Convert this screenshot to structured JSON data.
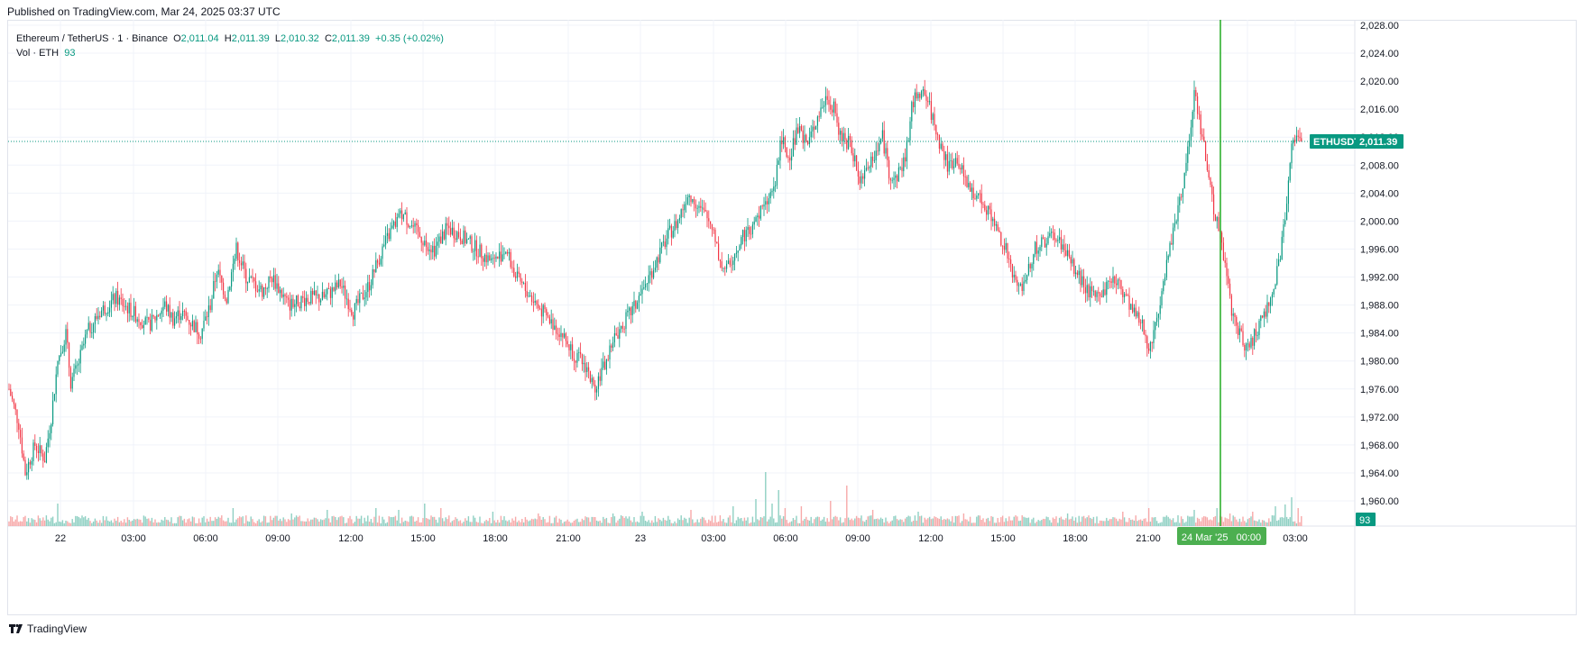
{
  "published": "Published on TradingView.com, Mar 24, 2025 03:37 UTC",
  "footer_brand": "TradingView",
  "legend": {
    "symbol": "Ethereum / TetherUS · 1 · Binance",
    "o_label": "O",
    "o_value": "2,011.04",
    "h_label": "H",
    "h_value": "2,011.39",
    "l_label": "L",
    "l_value": "2,010.32",
    "c_label": "C",
    "c_value": "2,011.39",
    "change": "+0.35 (+0.02%)",
    "vol_label": "Vol · ETH",
    "vol_value": "93"
  },
  "colors": {
    "up": "#089981",
    "down": "#f23645",
    "up_volume": "#8fd0c3",
    "down_volume": "#f7a9a9",
    "grid": "#f0f3fa",
    "crosshair": "#22ab22",
    "time_badge": "#4caf50",
    "price_badge": "#089981"
  },
  "chart_data": {
    "type": "candlestick",
    "symbol": "ETHUSDT",
    "timeframe": "1",
    "last_price": 2011.39,
    "last_price_label": "2,011.39",
    "last_volume": 93,
    "last_volume_label": "93",
    "crosshair_time_label": "24 Mar '25   00:00",
    "ylim": [
      1957,
      2028
    ],
    "y_ticks": [
      {
        "value": 2028,
        "label": "2,028.00"
      },
      {
        "value": 2024,
        "label": "2,024.00"
      },
      {
        "value": 2020,
        "label": "2,020.00"
      },
      {
        "value": 2016,
        "label": "2,016.00"
      },
      {
        "value": 2012,
        "label": "2,012.00"
      },
      {
        "value": 2008,
        "label": "2,008.00"
      },
      {
        "value": 2004,
        "label": "2,004.00"
      },
      {
        "value": 2000,
        "label": "2,000.00"
      },
      {
        "value": 1996,
        "label": "1,996.00"
      },
      {
        "value": 1992,
        "label": "1,992.00"
      },
      {
        "value": 1988,
        "label": "1,988.00"
      },
      {
        "value": 1984,
        "label": "1,984.00"
      },
      {
        "value": 1980,
        "label": "1,980.00"
      },
      {
        "value": 1976,
        "label": "1,976.00"
      },
      {
        "value": 1972,
        "label": "1,972.00"
      },
      {
        "value": 1968,
        "label": "1,968.00"
      },
      {
        "value": 1964,
        "label": "1,964.00"
      },
      {
        "value": 1960,
        "label": "1,960.00"
      }
    ],
    "x_ticks": [
      "22",
      "03:00",
      "06:00",
      "09:00",
      "12:00",
      "15:00",
      "18:00",
      "21:00",
      "23",
      "03:00",
      "06:00",
      "09:00",
      "12:00",
      "15:00",
      "18:00",
      "21:00",
      "00:00",
      "03:00"
    ],
    "price_path": [
      [
        0,
        1976
      ],
      [
        6,
        1971
      ],
      [
        10,
        1964
      ],
      [
        16,
        1968
      ],
      [
        22,
        1966
      ],
      [
        26,
        1972
      ],
      [
        30,
        1980
      ],
      [
        35,
        1984
      ],
      [
        38,
        1977
      ],
      [
        42,
        1979
      ],
      [
        48,
        1984
      ],
      [
        56,
        1987
      ],
      [
        66,
        1989
      ],
      [
        76,
        1987
      ],
      [
        86,
        1985
      ],
      [
        96,
        1988
      ],
      [
        101,
        1986
      ],
      [
        106,
        1987
      ],
      [
        110,
        1986
      ],
      [
        118,
        1984
      ],
      [
        124,
        1988
      ],
      [
        128,
        1993
      ],
      [
        134,
        1989
      ],
      [
        140,
        1996
      ],
      [
        146,
        1992
      ],
      [
        156,
        1990
      ],
      [
        162,
        1992
      ],
      [
        172,
        1988
      ],
      [
        184,
        1989
      ],
      [
        194,
        1989
      ],
      [
        204,
        1991
      ],
      [
        212,
        1987
      ],
      [
        222,
        1991
      ],
      [
        230,
        1996
      ],
      [
        236,
        1999
      ],
      [
        242,
        2001
      ],
      [
        246,
        2000
      ],
      [
        252,
        1998
      ],
      [
        262,
        1996
      ],
      [
        270,
        1999
      ],
      [
        278,
        1998
      ],
      [
        288,
        1996
      ],
      [
        298,
        1994
      ],
      [
        306,
        1996
      ],
      [
        312,
        1992
      ],
      [
        322,
        1989
      ],
      [
        332,
        1986
      ],
      [
        340,
        1984
      ],
      [
        348,
        1981
      ],
      [
        356,
        1979
      ],
      [
        360,
        1976
      ],
      [
        364,
        1978
      ],
      [
        368,
        1980
      ],
      [
        372,
        1983
      ],
      [
        380,
        1986
      ],
      [
        386,
        1988
      ],
      [
        392,
        1991
      ],
      [
        398,
        1994
      ],
      [
        406,
        1998
      ],
      [
        412,
        2000
      ],
      [
        418,
        2004
      ],
      [
        422,
        2003
      ],
      [
        428,
        2001
      ],
      [
        434,
        1999
      ],
      [
        438,
        1994
      ],
      [
        442,
        1993
      ],
      [
        446,
        1995
      ],
      [
        452,
        1998
      ],
      [
        458,
        1999
      ],
      [
        464,
        2002
      ],
      [
        468,
        2003
      ],
      [
        472,
        2006
      ],
      [
        476,
        2012
      ],
      [
        480,
        2009
      ],
      [
        486,
        2013
      ],
      [
        492,
        2011
      ],
      [
        498,
        2015
      ],
      [
        504,
        2018
      ],
      [
        508,
        2016
      ],
      [
        512,
        2012
      ],
      [
        518,
        2011
      ],
      [
        524,
        2006
      ],
      [
        528,
        2008
      ],
      [
        534,
        2010
      ],
      [
        538,
        2012
      ],
      [
        542,
        2007
      ],
      [
        546,
        2006
      ],
      [
        552,
        2009
      ],
      [
        556,
        2016
      ],
      [
        560,
        2019
      ],
      [
        566,
        2017
      ],
      [
        572,
        2012
      ],
      [
        578,
        2008
      ],
      [
        584,
        2009
      ],
      [
        590,
        2005
      ],
      [
        596,
        2004
      ],
      [
        602,
        2002
      ],
      [
        608,
        1999
      ],
      [
        614,
        1996
      ],
      [
        618,
        1992
      ],
      [
        622,
        1990
      ],
      [
        626,
        1992
      ],
      [
        632,
        1996
      ],
      [
        638,
        1997
      ],
      [
        644,
        1998
      ],
      [
        650,
        1996
      ],
      [
        656,
        1993
      ],
      [
        662,
        1991
      ],
      [
        668,
        1989
      ],
      [
        674,
        1990
      ],
      [
        680,
        1992
      ],
      [
        686,
        1990
      ],
      [
        692,
        1987
      ],
      [
        698,
        1985
      ],
      [
        702,
        1982
      ],
      [
        706,
        1985
      ],
      [
        710,
        1990
      ],
      [
        714,
        1995
      ],
      [
        718,
        2000
      ],
      [
        722,
        2004
      ],
      [
        726,
        2010
      ],
      [
        730,
        2018
      ],
      [
        734,
        2013
      ],
      [
        738,
        2008
      ],
      [
        742,
        2002
      ],
      [
        746,
        1998
      ],
      [
        750,
        1992
      ],
      [
        754,
        1986
      ],
      [
        758,
        1984
      ],
      [
        762,
        1982
      ],
      [
        766,
        1983
      ],
      [
        770,
        1985
      ],
      [
        774,
        1987
      ],
      [
        778,
        1989
      ],
      [
        782,
        1994
      ],
      [
        786,
        2000
      ],
      [
        790,
        2010
      ],
      [
        794,
        2013
      ],
      [
        796,
        2011.39
      ]
    ],
    "volume_spikes": [
      [
        30,
        25
      ],
      [
        138,
        20
      ],
      [
        174,
        14
      ],
      [
        196,
        18
      ],
      [
        226,
        20
      ],
      [
        240,
        18
      ],
      [
        256,
        25
      ],
      [
        266,
        20
      ],
      [
        298,
        16
      ],
      [
        326,
        14
      ],
      [
        372,
        14
      ],
      [
        390,
        16
      ],
      [
        420,
        18
      ],
      [
        446,
        22
      ],
      [
        460,
        30
      ],
      [
        466,
        60
      ],
      [
        470,
        25
      ],
      [
        474,
        40
      ],
      [
        478,
        20
      ],
      [
        488,
        22
      ],
      [
        506,
        28
      ],
      [
        516,
        45
      ],
      [
        532,
        18
      ],
      [
        560,
        16
      ],
      [
        588,
        14
      ],
      [
        620,
        12
      ],
      [
        652,
        14
      ],
      [
        686,
        16
      ],
      [
        702,
        20
      ],
      [
        730,
        18
      ],
      [
        744,
        20
      ],
      [
        752,
        14
      ],
      [
        766,
        16
      ],
      [
        780,
        22
      ],
      [
        786,
        24
      ],
      [
        790,
        32
      ],
      [
        794,
        20
      ]
    ]
  }
}
